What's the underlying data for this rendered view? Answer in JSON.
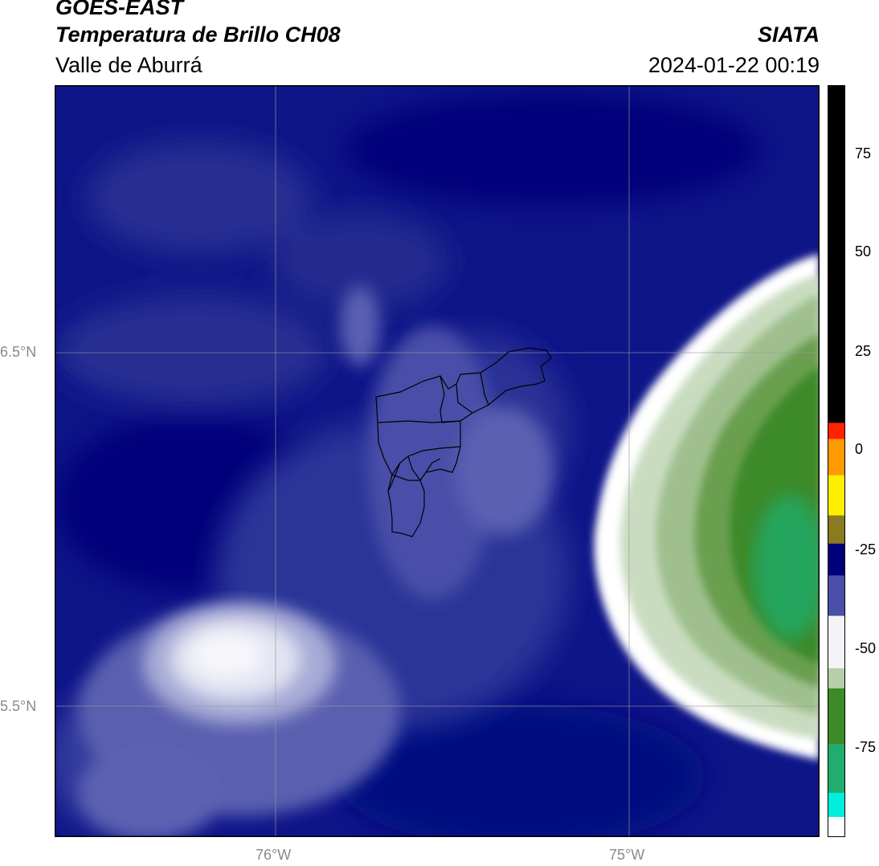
{
  "header": {
    "satellite": "GOES-EAST",
    "product": "Temperatura de Brillo CH08",
    "region": "Valle de Aburrá",
    "organization": "SIATA",
    "datetime": "2024-01-22 00:19"
  },
  "map": {
    "lat_labels": [
      "6.5°N",
      "5.5°N"
    ],
    "lon_labels": [
      "76°W",
      "75°W"
    ],
    "gridlines": true,
    "overlay": "municipal-boundaries"
  },
  "colorbar": {
    "ticks": [
      "75",
      "50",
      "25",
      "0",
      "-25",
      "-50",
      "-75"
    ],
    "range": [
      -95,
      92
    ],
    "colors": {
      "black": "#000000",
      "red": "#ff2200",
      "orange": "#ff9900",
      "yellow": "#ffee00",
      "olive": "#8a7a20",
      "navy": "#00007a",
      "blue": "#4a4fa8",
      "white": "#f4f4f8",
      "pale-green": "#b5cfa8",
      "green": "#3c8a28",
      "teal": "#1fae6e",
      "cyan": "#00eedd"
    }
  }
}
